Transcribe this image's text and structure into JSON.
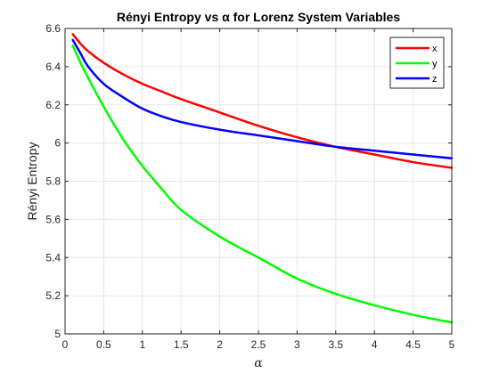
{
  "chart_data": {
    "type": "line",
    "title": "Rényi Entropy vs α for Lorenz System Variables",
    "xlabel": "α",
    "ylabel": "Rényi Entropy",
    "xlim": [
      0,
      5
    ],
    "ylim": [
      5,
      6.6
    ],
    "xticks": [
      0,
      0.5,
      1,
      1.5,
      2,
      2.5,
      3,
      3.5,
      4,
      4.5,
      5
    ],
    "yticks": [
      5,
      5.2,
      5.4,
      5.6,
      5.8,
      6,
      6.2,
      6.4,
      6.6
    ],
    "xtick_labels": [
      "0",
      "0.5",
      "1",
      "1.5",
      "2",
      "2.5",
      "3",
      "3.5",
      "4",
      "4.5",
      "5"
    ],
    "ytick_labels": [
      "5",
      "5.2",
      "5.4",
      "5.6",
      "5.8",
      "6",
      "6.2",
      "6.4",
      "6.6"
    ],
    "grid": true,
    "legend_position": "top-right",
    "x": [
      0.1,
      0.2,
      0.3,
      0.5,
      0.75,
      1,
      1.25,
      1.5,
      2,
      2.5,
      3,
      3.5,
      4,
      4.5,
      5
    ],
    "series": [
      {
        "name": "x",
        "color": "#ff0000",
        "values": [
          6.57,
          6.52,
          6.48,
          6.42,
          6.36,
          6.31,
          6.27,
          6.23,
          6.16,
          6.09,
          6.03,
          5.98,
          5.94,
          5.9,
          5.87
        ]
      },
      {
        "name": "y",
        "color": "#00ff00",
        "values": [
          6.51,
          6.42,
          6.34,
          6.19,
          6.02,
          5.88,
          5.76,
          5.65,
          5.51,
          5.4,
          5.29,
          5.21,
          5.15,
          5.1,
          5.06
        ]
      },
      {
        "name": "z",
        "color": "#0000ff",
        "values": [
          6.54,
          6.47,
          6.4,
          6.31,
          6.24,
          6.18,
          6.14,
          6.11,
          6.07,
          6.04,
          6.01,
          5.98,
          5.96,
          5.94,
          5.92
        ]
      }
    ]
  }
}
